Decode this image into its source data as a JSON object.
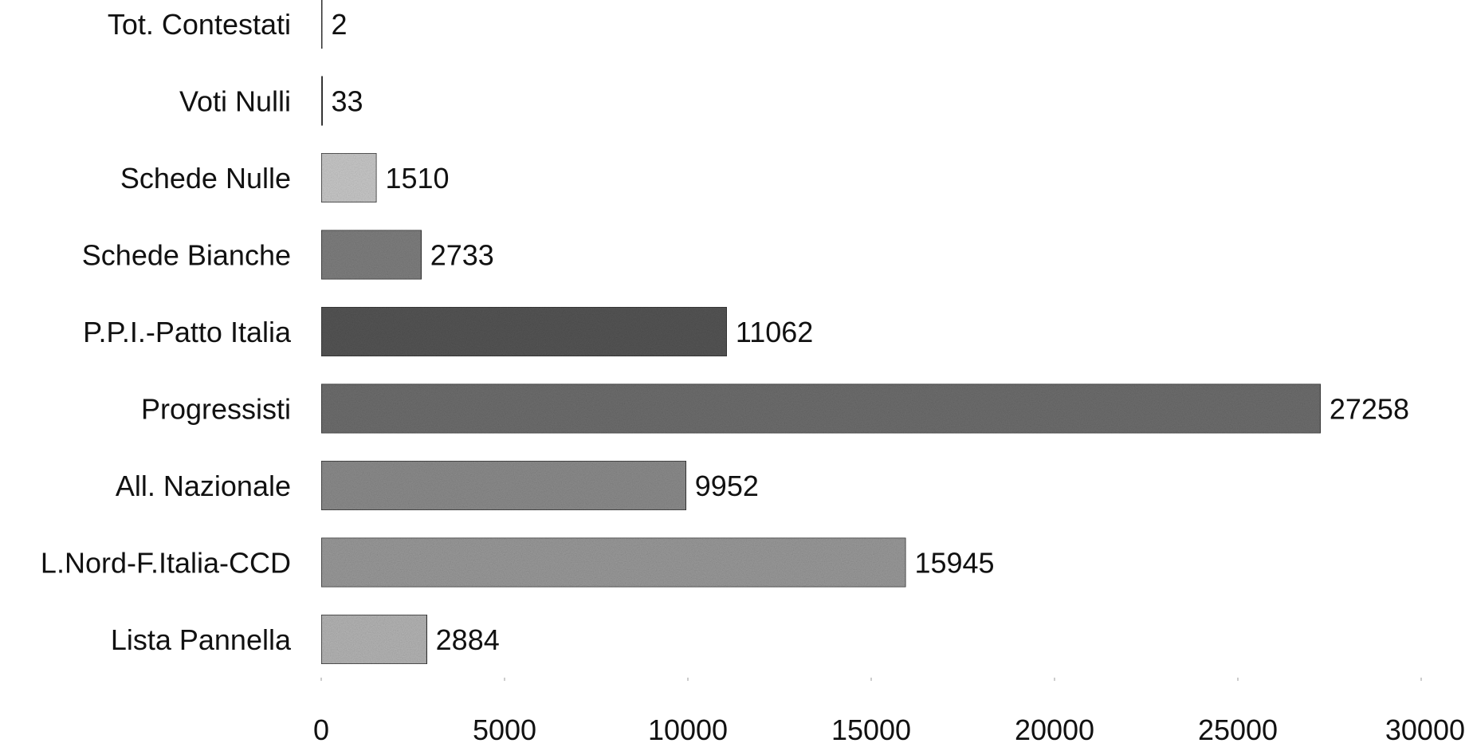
{
  "chart_data": {
    "type": "bar",
    "orientation": "horizontal",
    "categories": [
      "Tot. Contestati",
      "Voti Nulli",
      "Schede Nulle",
      "Schede Bianche",
      "P.P.I.-Patto Italia",
      "Progressisti",
      "All. Nazionale",
      "L.Nord-F.Italia-CCD",
      "Lista Pannella"
    ],
    "values": [
      2,
      33,
      1510,
      2733,
      11062,
      27258,
      9952,
      15945,
      2884
    ],
    "data_labels": [
      "2",
      "33",
      "1510",
      "2733",
      "11062",
      "27258",
      "9952",
      "15945",
      "2884"
    ],
    "bar_shades": [
      "#bdbdbd",
      "#8a8a8a",
      "#c9c9c9",
      "#7f7f7f",
      "#555555",
      "#6e6e6e",
      "#8c8c8c",
      "#9a9a9a",
      "#b5b5b5"
    ],
    "xlim": [
      0,
      30000
    ],
    "x_ticks": [
      "0",
      "5000",
      "10000",
      "15000",
      "20000",
      "25000",
      "30000"
    ],
    "title": "",
    "xlabel": "",
    "ylabel": "",
    "grid": false,
    "legend": "none"
  }
}
